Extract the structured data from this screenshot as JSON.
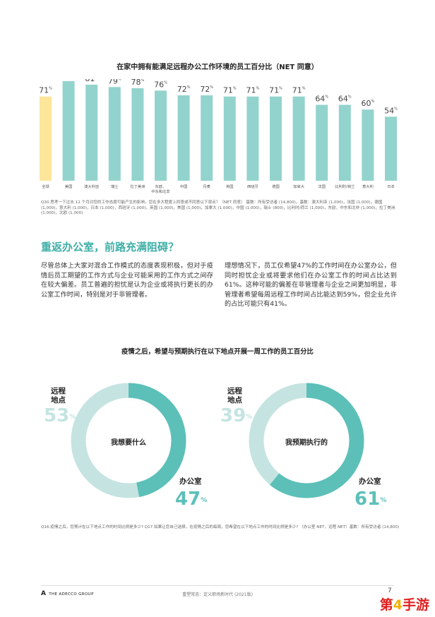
{
  "chart_data": [
    {
      "type": "bar",
      "title": "在家中拥有能满足远程办公工作环境的员工百分比（NET 同意）",
      "categories": [
        "全球",
        "美国",
        "澳大利亚",
        "瑞士",
        "拉丁美洲",
        "东欧、中东和北非",
        "中国",
        "丹麦",
        "英国",
        "西班牙",
        "德国",
        "加拿大",
        "法国",
        "比利时/荷兰",
        "意大利",
        "日本"
      ],
      "values": [
        71,
        84,
        81,
        79,
        78,
        76,
        72,
        72,
        71,
        71,
        71,
        71,
        64,
        64,
        60,
        54
      ],
      "value_suffix": "%",
      "highlight_index": 0,
      "ylim": [
        0,
        100
      ],
      "colors": {
        "highlight": "#fde59a",
        "bar": "#93d3cd",
        "value_text": "#444444"
      },
      "grid": false,
      "legend": "none"
    },
    {
      "type": "pie",
      "title": "疫情之后，希望与预期执行在以下地点开展一周工作的员工百分比",
      "donuts": [
        {
          "center_label": "我想要什么",
          "slices": [
            {
              "label": "远程地点",
              "value": 53,
              "color": "#c5e4e1"
            },
            {
              "label": "办公室",
              "value": 47,
              "color": "#5cc0b9"
            }
          ]
        },
        {
          "center_label": "我预期执行的",
          "slices": [
            {
              "label": "远程地点",
              "value": 39,
              "color": "#c5e4e1"
            },
            {
              "label": "办公室",
              "value": 61,
              "color": "#5cc0b9"
            }
          ]
        }
      ]
    }
  ],
  "footnote1": "Q30.思考一下过去 12 个月对您的工作态度可能产生的影响，您在多大程度上同意或不同意以下观点？（NET 同意） 基数：所有受访者 (14,800)，基数：澳大利亚 (1,000)，法国 (1,000)，德国 (1,000)，意大利 (1,000)，日本 (1,000)，西班牙 (1,000)，英国 (1,000)，美国 (1,000)，加拿大 (1,000)，中国 (1,000)，瑞士 (800)，比利时/荷兰 (1,000)，东欧、中东和北非 (1,000)，拉丁美洲 (1,000)，北欧 (1,000)",
  "section_title": "重返办公室，前路充满阻碍？",
  "col_left": "尽管总体上大家对混合工作模式的态度表现积极，但对于疫情后员工期望的工作方式与企业可能采用的工作方式之间存在较大偏差。员工普遍的担忧是认为企业或将执行更长的办公室工作时间，特别是对于非管理者。",
  "col_right": "理想情况下，员工仅希望47%的工作时间在办公室办公，但同时担忧企业或将要求他们在办公室工作的时间占比达到61%。这种可能的偏差在非管理者与企业之间更加明显，非管理者希望每周远程工作时间占比能达到59%，但企业允许的占比可能只有41%。",
  "donut1": {
    "remote_label_l1": "远程",
    "remote_label_l2": "地点",
    "remote_pct": "53",
    "office_label": "办公室",
    "office_pct": "47"
  },
  "donut2": {
    "remote_label_l1": "远程",
    "remote_label_l2": "地点",
    "remote_pct": "39",
    "office_label": "办公室",
    "office_pct": "61"
  },
  "pct_symbol": "%",
  "footnote2": "Q16.疫情之后，您预计在以下地点工作的时间比例是多少? Q17.如果让您自己选择，在疫情之后的每周，您希望在以下地点工作的时间比例是多少? （办公室 NET，远程 NET）基数：所有受访者 (14,800)",
  "footer": {
    "logo_mark": "A",
    "logo_text": "THE ADECCO GROUP",
    "center": "重塑常态：定义职场新时代 (2021版)",
    "page": "7"
  },
  "watermark": {
    "pre": "第",
    "num": "4",
    "post": "手游"
  }
}
